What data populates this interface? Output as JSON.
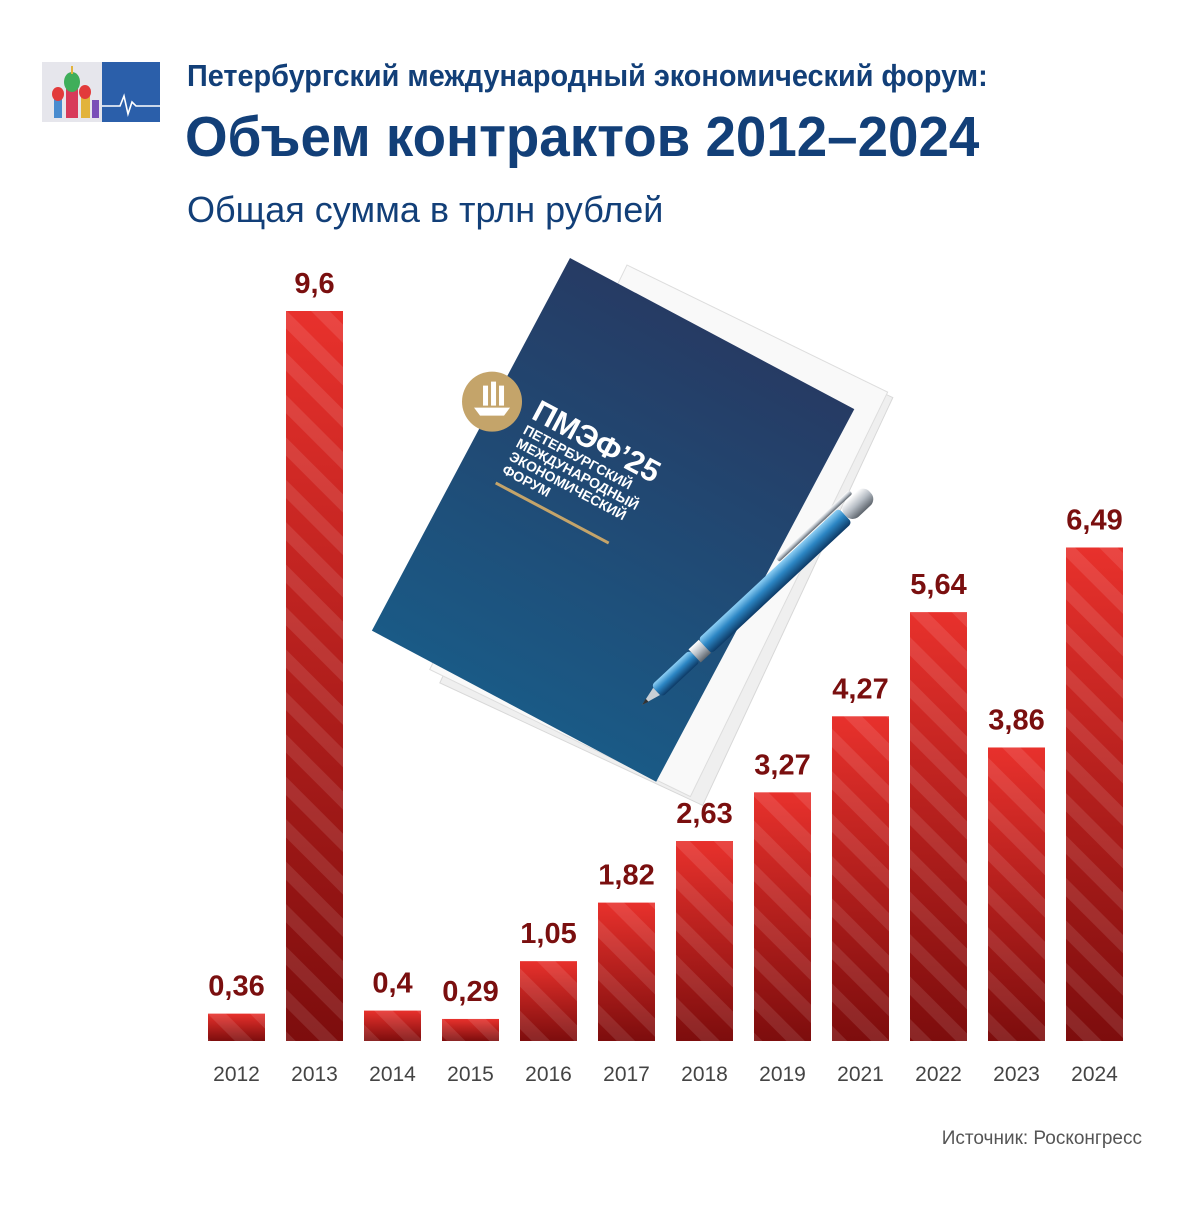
{
  "header": {
    "supertitle": "Петербургский международный экономический форум:",
    "title": "Объем контрактов 2012–2024",
    "subtitle": "Общая сумма в трлн рублей"
  },
  "illustration": {
    "brand": "ПМЭФ’25",
    "brand_lines": [
      "ПЕТЕРБУРГСКИЙ",
      "МЕЖДУНАРОДНЫЙ",
      "ЭКОНОМИЧЕСКИЙ",
      "ФОРУМ"
    ]
  },
  "colors": {
    "title": "#123f78",
    "bar_top": "#e8312c",
    "bar_bottom": "#7d0d0d",
    "value_label": "#7a0f0f",
    "axis_label": "#444444",
    "folder_top": "#263b64",
    "folder_bottom": "#1a5a86",
    "logo_gold": "#c4a46a"
  },
  "chart_data": {
    "type": "bar",
    "categories": [
      "2012",
      "2013",
      "2014",
      "2015",
      "2016",
      "2017",
      "2018",
      "2019",
      "2021",
      "2022",
      "2023",
      "2024"
    ],
    "values": [
      0.36,
      9.6,
      0.4,
      0.29,
      1.05,
      1.82,
      2.63,
      3.27,
      4.27,
      5.64,
      3.86,
      6.49
    ],
    "value_labels": [
      "0,36",
      "9,6",
      "0,4",
      "0,29",
      "1,05",
      "1,82",
      "2,63",
      "3,27",
      "4,27",
      "5,64",
      "3,86",
      "6,49"
    ],
    "title": "Объем контрактов 2012–2024",
    "subtitle": "Общая сумма в трлн рублей",
    "xlabel": "",
    "ylabel": "",
    "ylim": [
      0,
      9.6
    ],
    "grid": false,
    "legend": "none"
  },
  "source": "Источник: Росконгресс"
}
